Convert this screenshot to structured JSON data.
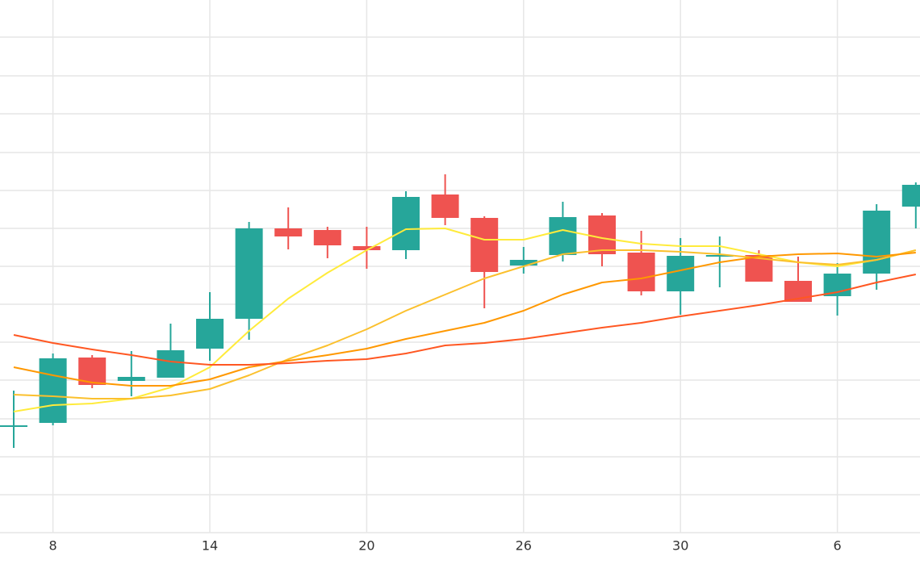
{
  "chart_data": {
    "type": "candlestick",
    "categories": [
      null,
      "8",
      null,
      null,
      null,
      "14",
      null,
      null,
      null,
      "20",
      null,
      null,
      null,
      "26",
      null,
      null,
      null,
      "30",
      null,
      null,
      null,
      "6",
      null,
      null
    ],
    "open": [
      133,
      136,
      217,
      188,
      192,
      228,
      265,
      377,
      375,
      355,
      350,
      419,
      390,
      331,
      344,
      393,
      347,
      299,
      342,
      344,
      312,
      293,
      321,
      404
    ],
    "high": [
      176,
      222,
      220,
      225,
      259,
      298,
      385,
      403,
      379,
      379,
      423,
      444,
      392,
      354,
      410,
      396,
      374,
      365,
      367,
      350,
      342,
      334,
      407,
      434
    ],
    "low": [
      105,
      133,
      179,
      169,
      192,
      213,
      239,
      351,
      340,
      327,
      339,
      381,
      278,
      321,
      336,
      330,
      294,
      270,
      304,
      311,
      286,
      269,
      301,
      377
    ],
    "close": [
      133,
      216,
      183,
      193,
      226,
      265,
      377,
      367,
      356,
      350,
      416,
      390,
      323,
      338,
      391,
      345,
      299,
      343,
      344,
      311,
      286,
      321,
      399,
      431
    ],
    "up_color": "#26a69a",
    "down_color": "#ef5350",
    "series": [
      {
        "color": "#ffeb3b",
        "values": [
          150,
          158,
          160,
          166,
          180,
          205,
          250,
          290,
          322,
          350,
          376,
          377,
          363,
          363,
          375,
          365,
          358,
          355,
          355,
          345,
          335,
          330,
          338,
          350
        ]
      },
      {
        "color": "#fbc02d",
        "values": [
          171,
          169,
          166,
          166,
          170,
          178,
          195,
          215,
          232,
          252,
          275,
          295,
          315,
          330,
          345,
          350,
          350,
          348,
          345,
          340,
          335,
          332,
          338,
          350
        ]
      },
      {
        "color": "#ff9800",
        "values": [
          205,
          195,
          186,
          182,
          182,
          190,
          205,
          213,
          220,
          228,
          240,
          250,
          260,
          275,
          295,
          310,
          315,
          325,
          335,
          342,
          345,
          346,
          342,
          347
        ]
      },
      {
        "color": "#ff5722",
        "values": [
          245,
          235,
          227,
          220,
          212,
          208,
          208,
          210,
          213,
          215,
          222,
          232,
          235,
          240,
          247,
          254,
          260,
          268,
          275,
          282,
          290,
          298,
          310,
          320
        ]
      }
    ],
    "ylim": [
      0,
      660
    ],
    "yticks": [
      0,
      47,
      94,
      141,
      189,
      236,
      283,
      330,
      377,
      424,
      471,
      519,
      566,
      614
    ],
    "grid": true
  }
}
